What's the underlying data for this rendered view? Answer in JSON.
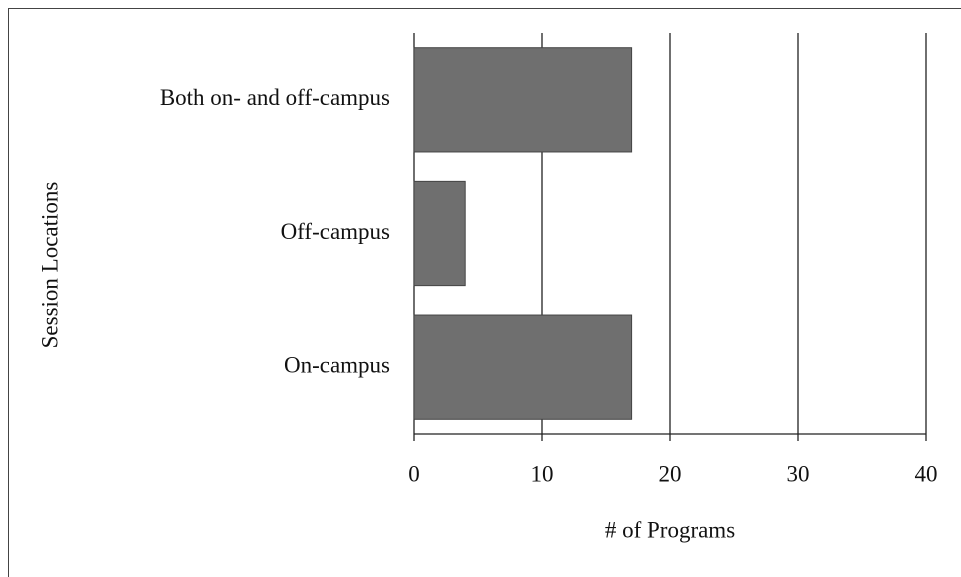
{
  "chart_data": {
    "type": "barh",
    "categories": [
      "Both on- and off-campus",
      "Off-campus",
      "On-campus"
    ],
    "values": [
      17,
      4,
      17
    ],
    "color": "#6f6f6f",
    "xlabel": "# of Programs",
    "ylabel": "Session Locations",
    "xlim": [
      0,
      40
    ],
    "xticks": [
      0,
      10,
      20,
      30,
      40
    ],
    "grid": true
  }
}
